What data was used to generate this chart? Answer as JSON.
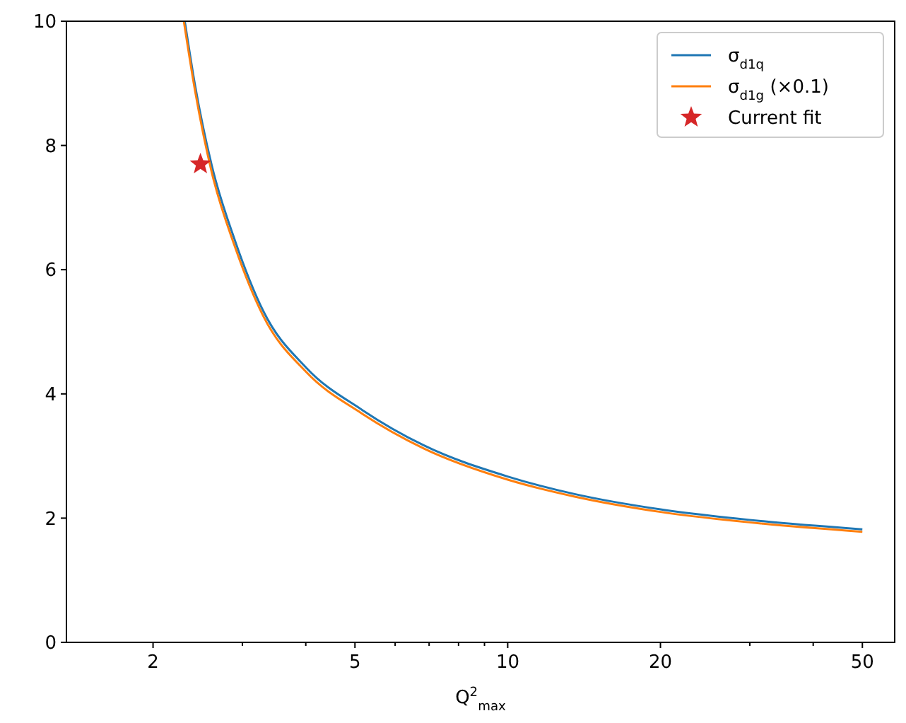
{
  "chart_data": {
    "type": "line",
    "xlabel": "Q$^{2}$$_{max}$",
    "log": "x",
    "xlim": [
      1.35,
      57.9
    ],
    "ylim": [
      0,
      10
    ],
    "xticks": [
      2,
      5,
      10,
      20,
      50,
      {
        "value": 3,
        "label": null
      },
      {
        "value": 4,
        "label": null
      },
      {
        "value": 6,
        "label": null
      },
      {
        "value": 7,
        "label": null
      },
      {
        "value": 8,
        "label": null
      },
      {
        "value": 9,
        "label": null
      },
      {
        "value": 30,
        "label": null
      },
      {
        "value": 40,
        "label": null
      }
    ],
    "yticks": [
      0,
      2,
      4,
      6,
      8,
      10
    ],
    "grid": false,
    "legend": "top right",
    "line_style": "solid",
    "series": [
      {
        "name": "σ$_{d1q}$",
        "color": "#1f77b4",
        "marker": "none",
        "x": [
          2.31,
          2.42,
          2.61,
          2.9,
          3.3,
          4.01,
          5.17,
          6.84,
          10,
          13.5,
          20,
          31.9,
          50
        ],
        "values": [
          10,
          8.97,
          7.68,
          6.47,
          5.33,
          4.42,
          3.74,
          3.17,
          2.67,
          2.39,
          2.14,
          1.95,
          1.82
        ]
      },
      {
        "name": "σ$_{d1g}$ (×0.1)",
        "color": "#ff7f0e",
        "marker": "none",
        "x": [
          2.3,
          2.42,
          2.61,
          2.9,
          3.3,
          4.01,
          5.17,
          6.84,
          10,
          13.5,
          20,
          31.9,
          50
        ],
        "values": [
          10,
          8.88,
          7.57,
          6.37,
          5.25,
          4.35,
          3.68,
          3.12,
          2.62,
          2.35,
          2.1,
          1.91,
          1.78
        ]
      },
      {
        "name": "Current fit",
        "color": "#d62728",
        "type": "scatter",
        "marker": "star",
        "x": [
          2.48
        ],
        "values": [
          7.7
        ]
      }
    ]
  }
}
